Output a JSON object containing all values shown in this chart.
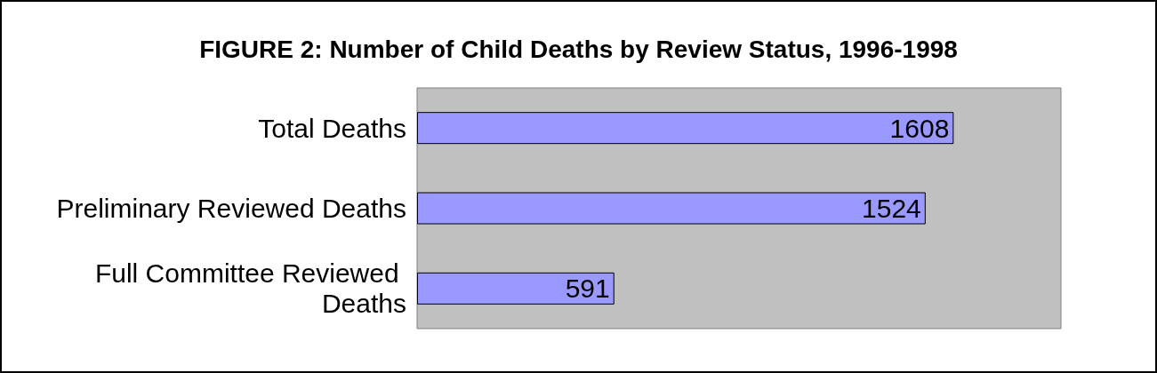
{
  "chart_data": {
    "type": "bar",
    "orientation": "horizontal",
    "title": "FIGURE 2: Number of Child Deaths by Review Status, 1996-1998",
    "categories": [
      "Total Deaths",
      "Preliminary Reviewed Deaths",
      "Full Committee Reviewed Deaths"
    ],
    "values": [
      1608,
      1524,
      591
    ],
    "color": "#9999ff",
    "data_labels": true
  }
}
